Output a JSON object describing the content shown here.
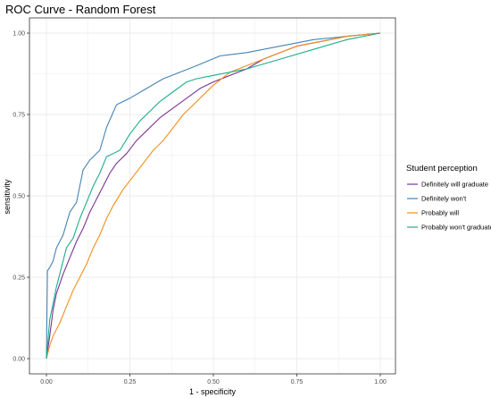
{
  "chart_data": {
    "type": "line",
    "title": "ROC Curve - Random Forest",
    "xlabel": "1 - specificity",
    "ylabel": "sensitivity",
    "xlim": [
      0,
      1
    ],
    "ylim": [
      0,
      1
    ],
    "x_ticks": [
      "0.00",
      "0.25",
      "0.50",
      "0.75",
      "1.00"
    ],
    "y_ticks": [
      "0.00",
      "0.25",
      "0.50",
      "0.75",
      "1.00"
    ],
    "grid": true,
    "legend": {
      "title": "Student perception",
      "position": "right"
    },
    "series": [
      {
        "name": "Definitely will graduate",
        "color": "#7b3294",
        "points": [
          [
            0,
            0
          ],
          [
            0.01,
            0.07
          ],
          [
            0.02,
            0.15
          ],
          [
            0.03,
            0.2
          ],
          [
            0.05,
            0.26
          ],
          [
            0.07,
            0.31
          ],
          [
            0.09,
            0.36
          ],
          [
            0.11,
            0.4
          ],
          [
            0.13,
            0.45
          ],
          [
            0.15,
            0.49
          ],
          [
            0.17,
            0.53
          ],
          [
            0.19,
            0.57
          ],
          [
            0.21,
            0.6
          ],
          [
            0.24,
            0.63
          ],
          [
            0.27,
            0.67
          ],
          [
            0.3,
            0.7
          ],
          [
            0.34,
            0.74
          ],
          [
            0.38,
            0.77
          ],
          [
            0.42,
            0.8
          ],
          [
            0.46,
            0.83
          ],
          [
            0.5,
            0.85
          ],
          [
            0.55,
            0.87
          ],
          [
            0.6,
            0.89
          ],
          [
            0.65,
            0.92
          ],
          [
            0.7,
            0.94
          ],
          [
            0.75,
            0.96
          ],
          [
            0.8,
            0.97
          ],
          [
            0.85,
            0.98
          ],
          [
            0.9,
            0.99
          ],
          [
            1,
            1
          ]
        ]
      },
      {
        "name": "Definitely won't",
        "color": "#4682b4",
        "points": [
          [
            0,
            0
          ],
          [
            0.003,
            0.27
          ],
          [
            0.01,
            0.28
          ],
          [
            0.02,
            0.3
          ],
          [
            0.03,
            0.34
          ],
          [
            0.05,
            0.38
          ],
          [
            0.07,
            0.45
          ],
          [
            0.09,
            0.48
          ],
          [
            0.11,
            0.58
          ],
          [
            0.13,
            0.61
          ],
          [
            0.16,
            0.64
          ],
          [
            0.18,
            0.71
          ],
          [
            0.21,
            0.78
          ],
          [
            0.25,
            0.8
          ],
          [
            0.3,
            0.83
          ],
          [
            0.35,
            0.86
          ],
          [
            0.4,
            0.88
          ],
          [
            0.45,
            0.9
          ],
          [
            0.52,
            0.93
          ],
          [
            0.6,
            0.94
          ],
          [
            0.7,
            0.96
          ],
          [
            0.8,
            0.98
          ],
          [
            0.9,
            0.99
          ],
          [
            1,
            1
          ]
        ]
      },
      {
        "name": "Probably will",
        "color": "#f28e1c",
        "points": [
          [
            0,
            0
          ],
          [
            0.01,
            0.04
          ],
          [
            0.02,
            0.07
          ],
          [
            0.04,
            0.11
          ],
          [
            0.06,
            0.16
          ],
          [
            0.08,
            0.21
          ],
          [
            0.1,
            0.25
          ],
          [
            0.12,
            0.29
          ],
          [
            0.14,
            0.34
          ],
          [
            0.16,
            0.38
          ],
          [
            0.18,
            0.43
          ],
          [
            0.2,
            0.47
          ],
          [
            0.23,
            0.52
          ],
          [
            0.26,
            0.56
          ],
          [
            0.29,
            0.6
          ],
          [
            0.32,
            0.64
          ],
          [
            0.35,
            0.67
          ],
          [
            0.38,
            0.71
          ],
          [
            0.41,
            0.75
          ],
          [
            0.44,
            0.78
          ],
          [
            0.47,
            0.81
          ],
          [
            0.5,
            0.84
          ],
          [
            0.55,
            0.88
          ],
          [
            0.6,
            0.9
          ],
          [
            0.65,
            0.92
          ],
          [
            0.7,
            0.94
          ],
          [
            0.75,
            0.96
          ],
          [
            0.8,
            0.97
          ],
          [
            0.9,
            0.99
          ],
          [
            1,
            1
          ]
        ]
      },
      {
        "name": "Probably won't graduate",
        "color": "#1aae8a",
        "points": [
          [
            0,
            0
          ],
          [
            0.01,
            0.12
          ],
          [
            0.02,
            0.17
          ],
          [
            0.03,
            0.22
          ],
          [
            0.05,
            0.3
          ],
          [
            0.06,
            0.34
          ],
          [
            0.08,
            0.37
          ],
          [
            0.1,
            0.43
          ],
          [
            0.12,
            0.48
          ],
          [
            0.14,
            0.53
          ],
          [
            0.16,
            0.57
          ],
          [
            0.18,
            0.62
          ],
          [
            0.22,
            0.64
          ],
          [
            0.25,
            0.69
          ],
          [
            0.28,
            0.73
          ],
          [
            0.31,
            0.76
          ],
          [
            0.34,
            0.79
          ],
          [
            0.38,
            0.82
          ],
          [
            0.42,
            0.85
          ],
          [
            0.45,
            0.86
          ],
          [
            0.5,
            0.87
          ],
          [
            0.55,
            0.88
          ],
          [
            0.6,
            0.89
          ],
          [
            0.7,
            0.92
          ],
          [
            0.8,
            0.95
          ],
          [
            0.9,
            0.98
          ],
          [
            1,
            1
          ]
        ]
      }
    ]
  }
}
